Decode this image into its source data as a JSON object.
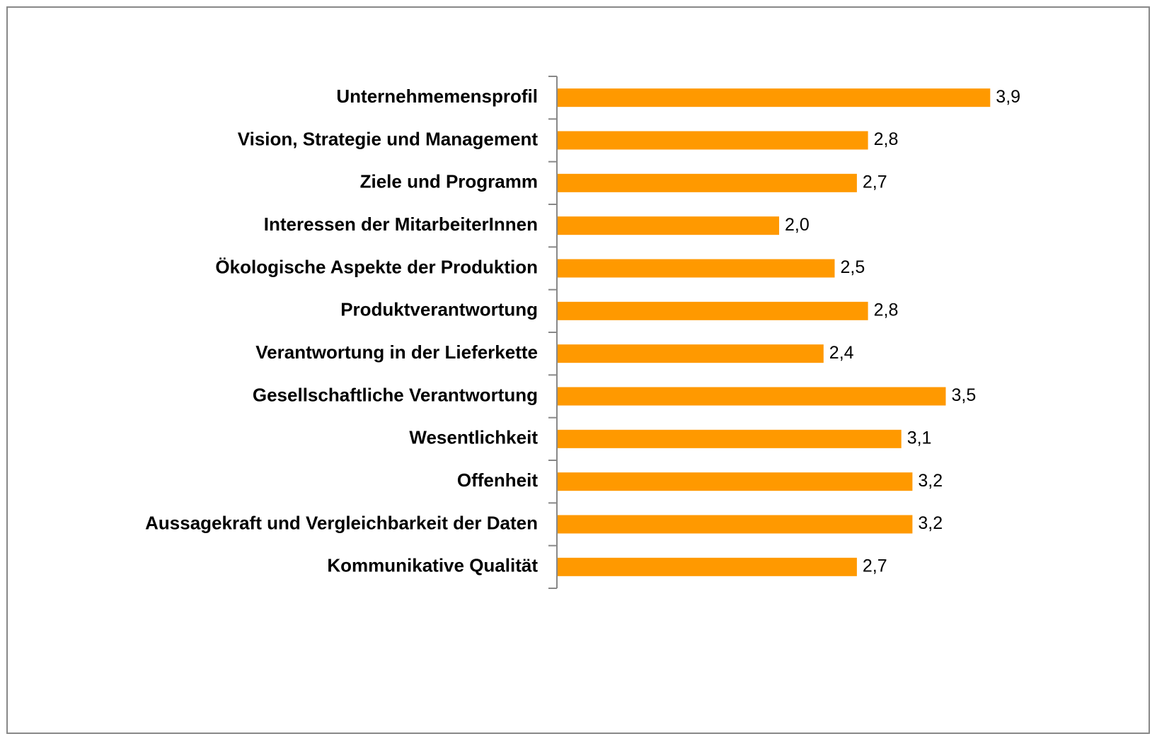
{
  "chart_data": {
    "type": "bar",
    "orientation": "horizontal",
    "categories": [
      "Unternehmemensprofil",
      "Vision, Strategie und Management",
      "Ziele und Programm",
      "Interessen der MitarbeiterInnen",
      "Ökologische Aspekte der Produktion",
      "Produktverantwortung",
      "Verantwortung in der Lieferkette",
      "Gesellschaftliche Verantwortung",
      "Wesentlichkeit",
      "Offenheit",
      "Aussagekraft und Vergleichbarkeit der Daten",
      "Kommunikative Qualität"
    ],
    "values": [
      3.9,
      2.8,
      2.7,
      2.0,
      2.5,
      2.8,
      2.4,
      3.5,
      3.1,
      3.2,
      3.2,
      2.7
    ],
    "value_labels": [
      "3,9",
      "2,8",
      "2,7",
      "2,0",
      "2,5",
      "2,8",
      "2,4",
      "3,5",
      "3,1",
      "3,2",
      "3,2",
      "2,7"
    ],
    "color": "#ff9900"
  }
}
